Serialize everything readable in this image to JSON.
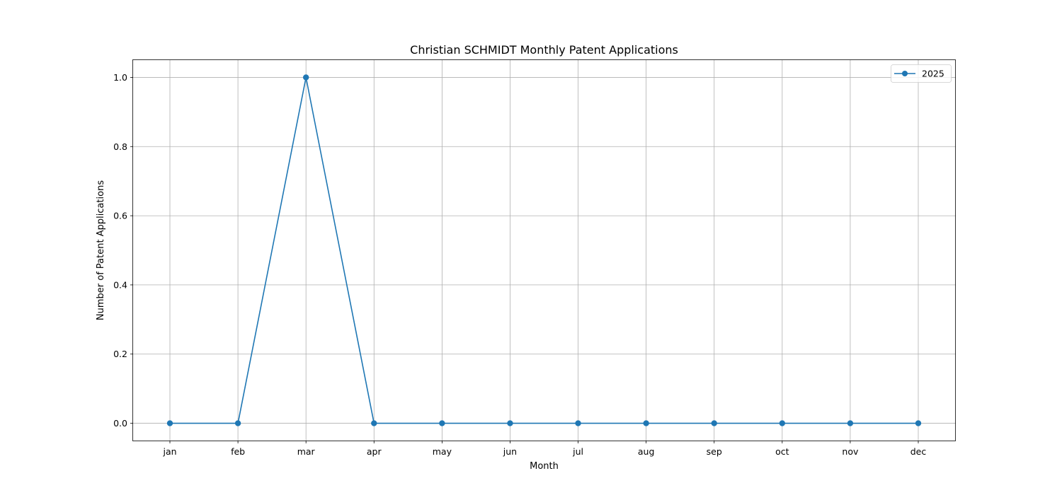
{
  "chart_data": {
    "type": "line",
    "title": "Christian SCHMIDT Monthly Patent Applications",
    "xlabel": "Month",
    "ylabel": "Number of Patent Applications",
    "categories": [
      "jan",
      "feb",
      "mar",
      "apr",
      "may",
      "jun",
      "jul",
      "aug",
      "sep",
      "oct",
      "nov",
      "dec"
    ],
    "series": [
      {
        "name": "2025",
        "values": [
          0,
          0,
          1,
          0,
          0,
          0,
          0,
          0,
          0,
          0,
          0,
          0
        ],
        "color": "#1f77b4",
        "marker": "circle"
      }
    ],
    "ylim": [
      -0.05,
      1.05
    ],
    "yticks": [
      0.0,
      0.2,
      0.4,
      0.6,
      0.8,
      1.0
    ],
    "ytick_labels": [
      "0.0",
      "0.2",
      "0.4",
      "0.6",
      "0.8",
      "1.0"
    ],
    "grid": true,
    "legend_position": "top-right"
  }
}
